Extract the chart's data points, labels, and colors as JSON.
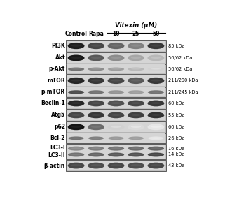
{
  "title": "Vitexin (μM)",
  "col_labels": [
    "Control",
    "Rapa",
    "10",
    "25",
    "50"
  ],
  "row_labels": [
    "PI3K",
    "Akt",
    "p-Akt",
    "mTOR",
    "p-mTOR",
    "Beclin-1",
    "Atg5",
    "p62",
    "Bcl-2",
    "LC3-I\nLC3-II",
    "β-actin"
  ],
  "kda_labels": [
    "85 kDa",
    "56/62 kDa",
    "56/62 kDa",
    "211/290 kDa",
    "211/245 kDa",
    "60 kDa",
    "55 kDa",
    "60 kDa",
    "26 kDa",
    "16 kDa\n14 kDa",
    "43 kDa"
  ],
  "bg_color": "#ffffff",
  "num_rows": 11,
  "num_cols": 5,
  "panel_bg": "#c8c8c8",
  "band_patterns": [
    [
      0.88,
      0.72,
      0.6,
      0.5,
      0.78
    ],
    [
      0.9,
      0.65,
      0.45,
      0.35,
      0.28
    ],
    [
      0.55,
      0.45,
      0.38,
      0.28,
      0.18
    ],
    [
      0.85,
      0.78,
      0.72,
      0.65,
      0.78
    ],
    [
      0.7,
      0.55,
      0.42,
      0.38,
      0.55
    ],
    [
      0.85,
      0.72,
      0.68,
      0.72,
      0.78
    ],
    [
      0.72,
      0.78,
      0.72,
      0.75,
      0.8
    ],
    [
      0.92,
      0.58,
      0.18,
      0.14,
      0.1
    ],
    [
      0.55,
      0.5,
      0.4,
      0.38,
      0.1
    ],
    [
      0.55,
      0.6,
      0.65,
      0.68,
      0.72
    ],
    [
      0.72,
      0.7,
      0.72,
      0.7,
      0.72
    ]
  ],
  "p62_bg": "#b8b8b8",
  "row_heights": [
    1.0,
    0.95,
    0.85,
    1.0,
    0.85,
    0.95,
    0.95,
    0.95,
    0.85,
    1.3,
    0.95
  ]
}
